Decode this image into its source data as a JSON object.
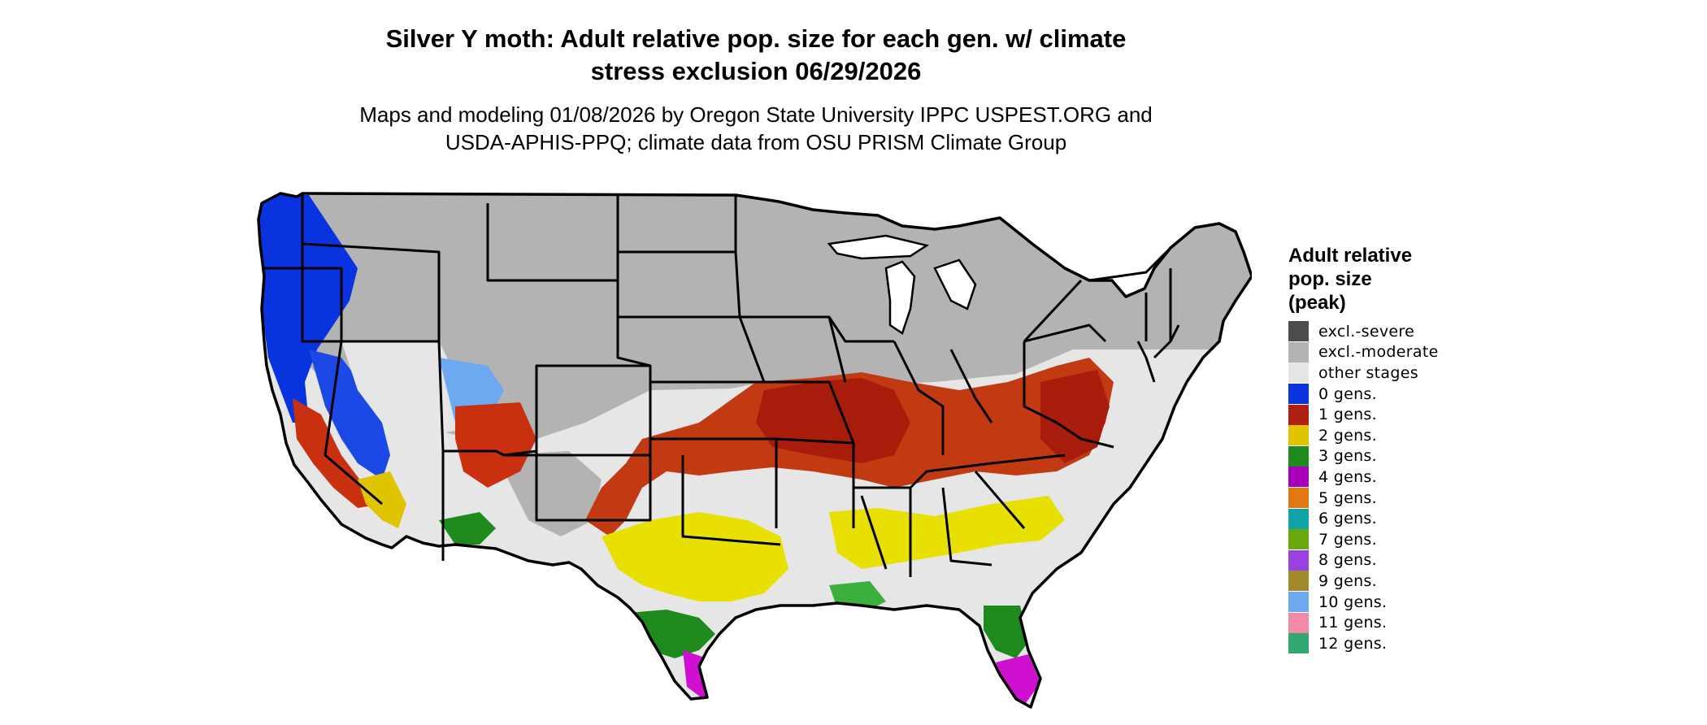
{
  "title_line1": "Silver Y moth: Adult relative pop. size for each gen. w/ climate",
  "title_line2": "stress exclusion 06/29/2026",
  "subtitle_line1": "Maps and modeling 01/08/2026 by Oregon State University IPPC USPEST.ORG and",
  "subtitle_line2": "USDA-APHIS-PPQ; climate data from OSU PRISM Climate Group",
  "legend": {
    "title_line1": "Adult relative",
    "title_line2": "pop. size",
    "title_line3": "(peak)",
    "items": [
      {
        "label": "excl.-severe",
        "color": "#4d4d4d"
      },
      {
        "label": "excl.-moderate",
        "color": "#b3b3b3"
      },
      {
        "label": "other stages",
        "color": "#e6e6e6"
      },
      {
        "label": "0 gens.",
        "color": "#0a33e0"
      },
      {
        "label": "1 gens.",
        "color": "#b02010"
      },
      {
        "label": "2 gens.",
        "color": "#e0c400"
      },
      {
        "label": "3 gens.",
        "color": "#1e8a1e"
      },
      {
        "label": "4 gens.",
        "color": "#a800b8"
      },
      {
        "label": "5 gens.",
        "color": "#e07a10"
      },
      {
        "label": "6 gens.",
        "color": "#10a4a8"
      },
      {
        "label": "7 gens.",
        "color": "#6aa810"
      },
      {
        "label": "8 gens.",
        "color": "#9a42e0"
      },
      {
        "label": "9 gens.",
        "color": "#a08a2a"
      },
      {
        "label": "10 gens.",
        "color": "#6ea8f0"
      },
      {
        "label": "11 gens.",
        "color": "#f08aa8"
      },
      {
        "label": "12 gens.",
        "color": "#30a870"
      }
    ]
  }
}
